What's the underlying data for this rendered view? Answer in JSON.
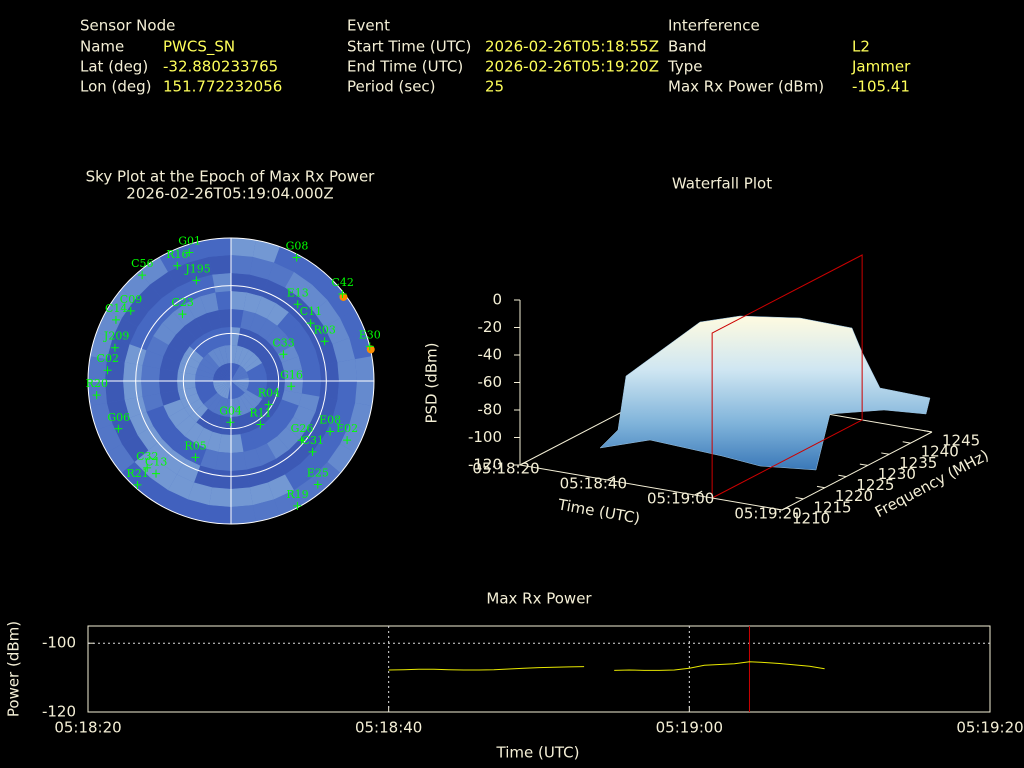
{
  "header": {
    "sections": [
      {
        "title": "Sensor Node",
        "rows": [
          {
            "label": "Name",
            "value": "PWCS_SN"
          },
          {
            "label": "Lat (deg)",
            "value": -32.880233765
          },
          {
            "label": "Lon (deg)",
            "value": 151.772232056
          }
        ]
      },
      {
        "title": "Event",
        "rows": [
          {
            "label": "Start Time (UTC)",
            "value": "2026-02-26T05:18:55Z"
          },
          {
            "label": "End Time (UTC)",
            "value": "2026-02-26T05:19:20Z"
          },
          {
            "label": "Period (sec)",
            "value": 25
          }
        ]
      },
      {
        "title": "Interference",
        "rows": [
          {
            "label": "Band",
            "value": "L2"
          },
          {
            "label": "Type",
            "value": "Jammer"
          },
          {
            "label": "Max Rx Power (dBm)",
            "value": -105.41
          }
        ]
      }
    ]
  },
  "chart_data": [
    {
      "type": "polar_scatter",
      "title": "Sky Plot at the Epoch of Max Rx Power",
      "subtitle": "2026-02-26T05:19:04.000Z",
      "color": "#00ff00",
      "highlight_color": "#ff8c00",
      "points": [
        {
          "name": "G01",
          "az": 342,
          "el": 5
        },
        {
          "name": "R16",
          "az": 335,
          "el": 10
        },
        {
          "name": "G08",
          "az": 28,
          "el": 2
        },
        {
          "name": "C56",
          "az": 320,
          "el": 3
        },
        {
          "name": "J195",
          "az": 341,
          "el": 23
        },
        {
          "name": "C42",
          "az": 52,
          "el": 1,
          "highlight": true
        },
        {
          "name": "E13",
          "az": 41,
          "el": 26
        },
        {
          "name": "C09",
          "az": 305,
          "el": 13
        },
        {
          "name": "C23",
          "az": 324,
          "el": 38
        },
        {
          "name": "C11",
          "az": 54,
          "el": 28
        },
        {
          "name": "R03",
          "az": 67,
          "el": 26
        },
        {
          "name": "E30",
          "az": 76,
          "el": 0,
          "highlight": true
        },
        {
          "name": "C33",
          "az": 63,
          "el": 53
        },
        {
          "name": "G16",
          "az": 95,
          "el": 52
        },
        {
          "name": "R04",
          "az": 122,
          "el": 62
        },
        {
          "name": "G06",
          "az": 247,
          "el": 13
        },
        {
          "name": "E08",
          "az": 117,
          "el": 20
        },
        {
          "name": "G26",
          "az": 130,
          "el": 32
        },
        {
          "name": "E02",
          "az": 117,
          "el": 8
        },
        {
          "name": "R05",
          "az": 205,
          "el": 37
        },
        {
          "name": "C32",
          "az": 224,
          "el": 14
        },
        {
          "name": "R21",
          "az": 222,
          "el": 2
        },
        {
          "name": "E25",
          "az": 140,
          "el": 5
        },
        {
          "name": "R19",
          "az": 152,
          "el": 1
        },
        {
          "name": "G04",
          "az": 181,
          "el": 64
        },
        {
          "name": "R11",
          "az": 146,
          "el": 57
        },
        {
          "name": "C31",
          "az": 131,
          "el": 22
        },
        {
          "name": "C13",
          "az": 219,
          "el": 15
        },
        {
          "name": "C14",
          "az": 298,
          "el": 8
        },
        {
          "name": "J209",
          "az": 286,
          "el": 14
        },
        {
          "name": "C02",
          "az": 275,
          "el": 12
        },
        {
          "name": "R20",
          "az": 264,
          "el": 5
        }
      ]
    },
    {
      "type": "surface3d",
      "title": "Waterfall Plot",
      "xlabel": "Time (UTC)",
      "ylabel": "Frequency (MHz)",
      "zlabel": "PSD (dBm)",
      "xticks": [
        "05:18:20",
        "05:18:40",
        "05:19:00",
        "05:19:20"
      ],
      "ylim": [
        1210,
        1245
      ],
      "yticks": [
        1210,
        1215,
        1220,
        1225,
        1230,
        1235,
        1240,
        1245
      ],
      "zlim": [
        -120,
        0
      ],
      "zticks": [
        0,
        -20,
        -40,
        -60,
        -80,
        -100,
        -120
      ],
      "cursor_x": "05:19:04",
      "cursor_color": "#cc0000"
    },
    {
      "type": "line",
      "title": "Max Rx Power",
      "xlabel": "Time (UTC)",
      "ylabel": "Power (dBm)",
      "color": "#e8e800",
      "x": [
        "05:18:40",
        "05:18:41",
        "05:18:42",
        "05:18:43",
        "05:18:44",
        "05:18:45",
        "05:18:46",
        "05:18:47",
        "05:18:48",
        "05:18:49",
        "05:18:50",
        "05:18:51",
        "05:18:52",
        "05:18:53",
        "05:18:54",
        "05:18:55",
        "05:18:56",
        "05:18:57",
        "05:18:58",
        "05:18:59",
        "05:19:00",
        "05:19:01",
        "05:19:02",
        "05:19:03",
        "05:19:04",
        "05:19:05",
        "05:19:06",
        "05:19:07",
        "05:19:08",
        "05:19:09"
      ],
      "values": [
        -107.8,
        -107.7,
        -107.6,
        -107.6,
        -107.7,
        -107.8,
        -107.8,
        -107.7,
        -107.5,
        -107.3,
        -107.1,
        -107.0,
        -106.9,
        -106.8,
        null,
        -107.9,
        -107.8,
        -107.9,
        -107.9,
        -107.8,
        -107.3,
        -106.4,
        -106.2,
        -106.0,
        -105.41,
        -105.6,
        -105.9,
        -106.3,
        -106.7,
        -107.4
      ],
      "xlim": [
        "05:18:20",
        "05:19:20"
      ],
      "xticks": [
        "05:18:20",
        "05:18:40",
        "05:19:00",
        "05:19:20"
      ],
      "ylim": [
        -120,
        -95
      ],
      "yticks": [
        -120,
        -100
      ],
      "grid": true,
      "cursor_x": "05:19:04",
      "cursor_color": "#cc0000"
    }
  ]
}
